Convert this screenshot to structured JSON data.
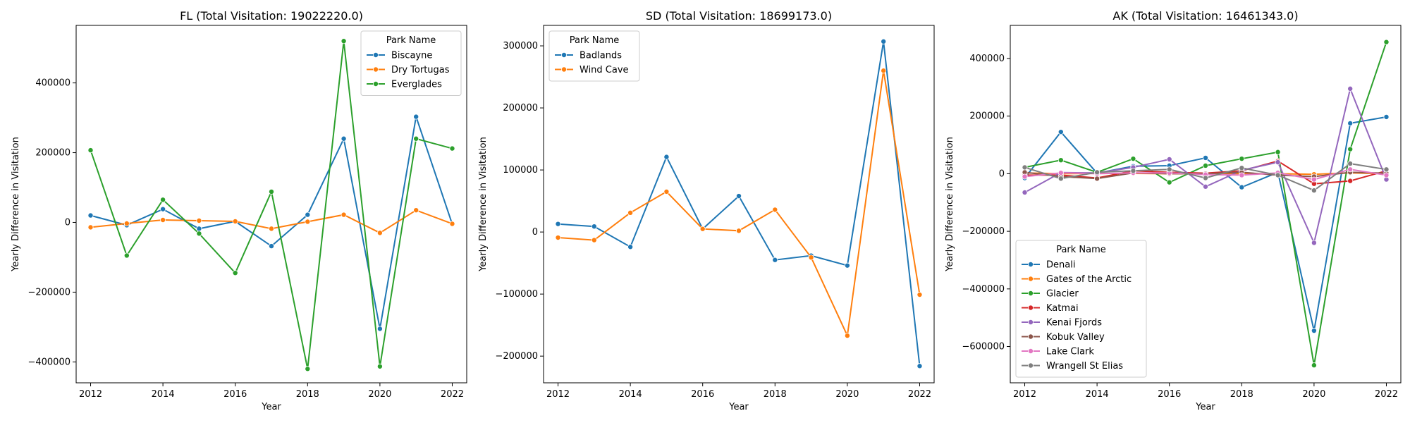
{
  "colors": {
    "tab_blue": "#1f77b4",
    "tab_orange": "#ff7f0e",
    "tab_green": "#2ca02c",
    "tab_red": "#d62728",
    "tab_purple": "#9467bd",
    "tab_brown": "#8c564b",
    "tab_pink": "#e377c2",
    "tab_gray": "#7f7f7f"
  },
  "chart_data": [
    {
      "type": "line",
      "title": "FL (Total Visitation: 19022220.0)",
      "xlabel": "Year",
      "ylabel": "Yearly Difference in Visitation",
      "legend_title": "Park Name",
      "legend_position": "top-right",
      "xlim": [
        2011.6,
        2022.4
      ],
      "ylim": [
        -460000,
        565000
      ],
      "xticks": [
        2012,
        2014,
        2016,
        2018,
        2020,
        2022
      ],
      "yticks": [
        -400000,
        -200000,
        0,
        200000,
        400000
      ],
      "xtick_labels": [
        "2012",
        "2014",
        "2016",
        "2018",
        "2020",
        "2022"
      ],
      "ytick_labels": [
        "−400000",
        "−200000",
        "0",
        "200000",
        "400000"
      ],
      "x": [
        2012,
        2013,
        2014,
        2015,
        2016,
        2017,
        2018,
        2019,
        2020,
        2021,
        2022
      ],
      "series": [
        {
          "name": "Biscayne",
          "color": "#1f77b4",
          "values": [
            20000,
            -8000,
            38000,
            -18000,
            3000,
            -68000,
            22000,
            240000,
            -305000,
            303000,
            -5000
          ]
        },
        {
          "name": "Dry Tortugas",
          "color": "#ff7f0e",
          "values": [
            -14000,
            -3000,
            7000,
            5000,
            3000,
            -18000,
            2000,
            22000,
            -30000,
            35000,
            -4000
          ]
        },
        {
          "name": "Everglades",
          "color": "#2ca02c",
          "values": [
            207000,
            -95000,
            65000,
            -32000,
            -145000,
            88000,
            -420000,
            520000,
            -413000,
            240000,
            212000
          ]
        }
      ]
    },
    {
      "type": "line",
      "title": "SD (Total Visitation: 18699173.0)",
      "xlabel": "Year",
      "ylabel": "Yearly Difference in Visitation",
      "legend_title": "Park Name",
      "legend_position": "top-left",
      "xlim": [
        2011.6,
        2022.4
      ],
      "ylim": [
        -243000,
        333000
      ],
      "xticks": [
        2012,
        2014,
        2016,
        2018,
        2020,
        2022
      ],
      "yticks": [
        -200000,
        -100000,
        0,
        100000,
        200000,
        300000
      ],
      "xtick_labels": [
        "2012",
        "2014",
        "2016",
        "2018",
        "2020",
        "2022"
      ],
      "ytick_labels": [
        "−200000",
        "−100000",
        "0",
        "100000",
        "200000",
        "300000"
      ],
      "x": [
        2012,
        2013,
        2014,
        2015,
        2016,
        2017,
        2018,
        2019,
        2020,
        2021,
        2022
      ],
      "series": [
        {
          "name": "Badlands",
          "color": "#1f77b4",
          "values": [
            13000,
            9000,
            -24000,
            121000,
            5000,
            58000,
            -45000,
            -38000,
            -54000,
            307000,
            -216000
          ]
        },
        {
          "name": "Wind Cave",
          "color": "#ff7f0e",
          "values": [
            -9000,
            -13000,
            31000,
            65000,
            5000,
            2000,
            36000,
            -41000,
            -167000,
            260000,
            -101000
          ]
        }
      ]
    },
    {
      "type": "line",
      "title": "AK (Total Visitation: 16461343.0)",
      "xlabel": "Year",
      "ylabel": "Yearly Difference in Visitation",
      "legend_title": "Park Name",
      "legend_position": "lower-left",
      "xlim": [
        2011.6,
        2022.4
      ],
      "ylim": [
        -726000,
        515000
      ],
      "xticks": [
        2012,
        2014,
        2016,
        2018,
        2020,
        2022
      ],
      "yticks": [
        -600000,
        -400000,
        -200000,
        0,
        200000,
        400000
      ],
      "xtick_labels": [
        "2012",
        "2014",
        "2016",
        "2018",
        "2020",
        "2022"
      ],
      "ytick_labels": [
        "−600000",
        "−400000",
        "−200000",
        "0",
        "200000",
        "400000"
      ],
      "x": [
        2012,
        2013,
        2014,
        2015,
        2016,
        2017,
        2018,
        2019,
        2020,
        2021,
        2022
      ],
      "series": [
        {
          "name": "Denali",
          "color": "#1f77b4",
          "values": [
            -15000,
            145000,
            2000,
            26000,
            28000,
            55000,
            -47000,
            5000,
            -545000,
            175000,
            197000
          ]
        },
        {
          "name": "Gates of the Arctic",
          "color": "#ff7f0e",
          "values": [
            3000,
            0,
            1000,
            1000,
            0,
            0,
            0,
            0,
            -2000,
            3000,
            0
          ]
        },
        {
          "name": "Glacier",
          "color": "#2ca02c",
          "values": [
            22000,
            47000,
            5000,
            52000,
            -30000,
            28000,
            52000,
            75000,
            -665000,
            85000,
            457000
          ]
        },
        {
          "name": "Katmai",
          "color": "#d62728",
          "values": [
            -5000,
            -5000,
            -15000,
            10000,
            5000,
            2000,
            10000,
            44000,
            -35000,
            -25000,
            10000
          ]
        },
        {
          "name": "Kenai Fjords",
          "color": "#9467bd",
          "values": [
            -65000,
            4000,
            3000,
            22000,
            50000,
            -45000,
            12000,
            40000,
            -240000,
            295000,
            -20000
          ]
        },
        {
          "name": "Kobuk Valley",
          "color": "#8c564b",
          "values": [
            5000,
            -10000,
            -17000,
            3000,
            0,
            0,
            5000,
            -5000,
            -10000,
            5000,
            2000
          ]
        },
        {
          "name": "Lake Clark",
          "color": "#e377c2",
          "values": [
            -10000,
            3000,
            0,
            3000,
            3000,
            -3000,
            -5000,
            3000,
            -20000,
            15000,
            -5000
          ]
        },
        {
          "name": "Wrangell St Elias",
          "color": "#7f7f7f",
          "values": [
            22000,
            -17000,
            5000,
            10000,
            15000,
            -15000,
            20000,
            -5000,
            -58000,
            35000,
            15000
          ]
        }
      ]
    }
  ]
}
